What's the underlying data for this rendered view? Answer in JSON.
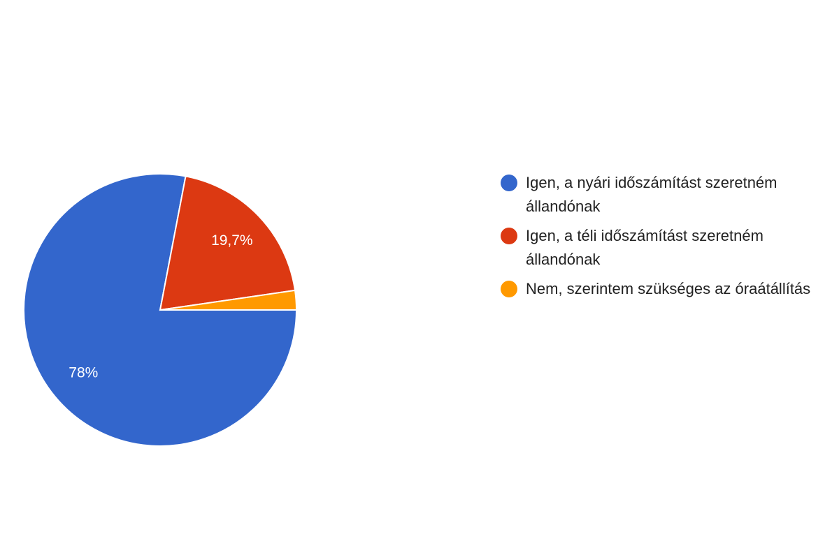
{
  "chart_data": {
    "type": "pie",
    "categories": [
      "Igen, a nyári időszámítást szeretném állandónak",
      "Igen, a téli időszámítást szeretném állandónak",
      "Nem, szerintem szükséges az óraátállítás"
    ],
    "values": [
      78,
      19.7,
      2.3
    ],
    "value_labels": [
      "78%",
      "19,7%",
      null
    ],
    "colors": [
      "#3366cc",
      "#dc3912",
      "#ff9900"
    ],
    "legend": "right"
  }
}
